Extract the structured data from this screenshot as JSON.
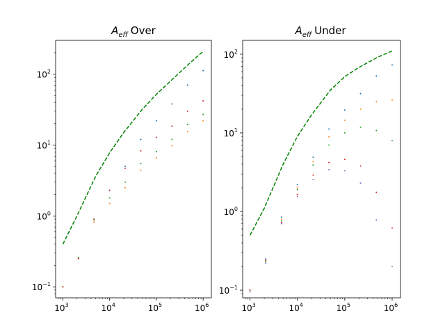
{
  "chart_data": [
    {
      "type": "scatter",
      "title": "Over",
      "title_prefix": "A",
      "title_subscript": "eff",
      "x_scale": "log",
      "y_scale": "log",
      "xlim": [
        700,
        1500000
      ],
      "ylim": [
        0.07,
        300
      ],
      "x_ticks": [
        {
          "value": 1000,
          "base": "10",
          "exp": "3"
        },
        {
          "value": 10000,
          "base": "10",
          "exp": "4"
        },
        {
          "value": 100000,
          "base": "10",
          "exp": "5"
        },
        {
          "value": 1000000,
          "base": "10",
          "exp": "6"
        }
      ],
      "y_ticks": [
        {
          "value": 0.1,
          "base": "10",
          "exp": "−1"
        },
        {
          "value": 1,
          "base": "10",
          "exp": "0"
        },
        {
          "value": 10,
          "base": "10",
          "exp": "1"
        },
        {
          "value": 100,
          "base": "10",
          "exp": "2"
        }
      ],
      "grid": false,
      "reference_line": {
        "style": "dashed",
        "color": "#008000",
        "x": [
          1000,
          2000,
          5000,
          10000,
          20000,
          50000,
          100000,
          200000,
          500000,
          1000000
        ],
        "y": [
          0.4,
          1.0,
          3.6,
          7.8,
          15,
          32,
          52,
          80,
          140,
          210
        ]
      },
      "series": [
        {
          "color": "#1f77b4",
          "x": [
            1000,
            2150,
            4640,
            10000,
            21500,
            46400,
            100000,
            215000,
            464000,
            1000000
          ],
          "y": [
            0.1,
            0.25,
            0.9,
            2.3,
            5.0,
            12,
            22,
            38,
            70,
            112
          ]
        },
        {
          "color": "#ff7f0e",
          "x": [
            1000,
            2150,
            4640,
            10000,
            21500,
            46400,
            100000,
            215000,
            464000,
            1000000
          ],
          "y": [
            0.1,
            0.25,
            0.82,
            1.5,
            2.5,
            4.4,
            6.6,
            9.8,
            15.5,
            22
          ]
        },
        {
          "color": "#2ca02c",
          "x": [
            1000,
            2150,
            4640,
            10000,
            21500,
            46400,
            100000,
            215000,
            464000,
            1000000
          ],
          "y": [
            0.1,
            0.26,
            0.88,
            1.8,
            3.0,
            5.5,
            8.1,
            12,
            19.5,
            27
          ]
        },
        {
          "color": "#d62728",
          "x": [
            1000,
            2150,
            4640,
            10000,
            21500,
            46400,
            100000,
            215000,
            464000,
            1000000
          ],
          "y": [
            0.1,
            0.25,
            0.9,
            2.3,
            4.7,
            8.3,
            12.8,
            18.5,
            30,
            42
          ]
        }
      ]
    },
    {
      "type": "scatter",
      "title": "Under",
      "title_prefix": "A",
      "title_subscript": "eff",
      "x_scale": "log",
      "y_scale": "log",
      "xlim": [
        700,
        1500000
      ],
      "ylim": [
        0.08,
        150
      ],
      "x_ticks": [
        {
          "value": 1000,
          "base": "10",
          "exp": "3"
        },
        {
          "value": 10000,
          "base": "10",
          "exp": "4"
        },
        {
          "value": 100000,
          "base": "10",
          "exp": "5"
        },
        {
          "value": 1000000,
          "base": "10",
          "exp": "6"
        }
      ],
      "y_ticks": [
        {
          "value": 0.1,
          "base": "10",
          "exp": "−1"
        },
        {
          "value": 1,
          "base": "10",
          "exp": "0"
        },
        {
          "value": 10,
          "base": "10",
          "exp": "1"
        },
        {
          "value": 100,
          "base": "10",
          "exp": "2"
        }
      ],
      "grid": false,
      "reference_line": {
        "style": "dashed",
        "color": "#008000",
        "x": [
          1000,
          2000,
          5000,
          10000,
          20000,
          50000,
          100000,
          200000,
          500000,
          1000000
        ],
        "y": [
          0.5,
          1.1,
          4.0,
          9.0,
          17,
          35,
          52,
          68,
          92,
          110
        ]
      },
      "series": [
        {
          "color": "#1f77b4",
          "x": [
            1000,
            2150,
            4640,
            10000,
            21500,
            46400,
            100000,
            215000,
            464000,
            1000000
          ],
          "y": [
            0.1,
            0.25,
            0.85,
            2.2,
            4.9,
            11.2,
            19.5,
            31.5,
            53,
            73
          ]
        },
        {
          "color": "#ff7f0e",
          "x": [
            1000,
            2150,
            4640,
            10000,
            21500,
            46400,
            100000,
            215000,
            464000,
            1000000
          ],
          "y": [
            0.1,
            0.24,
            0.8,
            2.0,
            4.3,
            8.9,
            14.5,
            20,
            25,
            26
          ]
        },
        {
          "color": "#2ca02c",
          "x": [
            1000,
            2150,
            4640,
            10000,
            21500,
            46400,
            100000,
            215000,
            464000,
            1000000
          ],
          "y": [
            0.1,
            0.23,
            0.76,
            1.9,
            3.9,
            7.0,
            10.0,
            11.8,
            10.7,
            8.0
          ]
        },
        {
          "color": "#d62728",
          "x": [
            1000,
            2150,
            4640,
            10000,
            21500,
            46400,
            100000,
            215000,
            464000,
            1000000
          ],
          "y": [
            0.1,
            0.24,
            0.73,
            1.65,
            2.9,
            4.2,
            4.6,
            3.8,
            1.75,
            0.62
          ]
        },
        {
          "color": "#9467bd",
          "x": [
            1000,
            2150,
            4640,
            10000,
            21500,
            46400,
            100000,
            215000,
            464000,
            1000000
          ],
          "y": [
            0.095,
            0.22,
            0.7,
            1.55,
            2.55,
            3.4,
            3.3,
            2.3,
            0.78,
            0.2
          ]
        }
      ]
    }
  ]
}
